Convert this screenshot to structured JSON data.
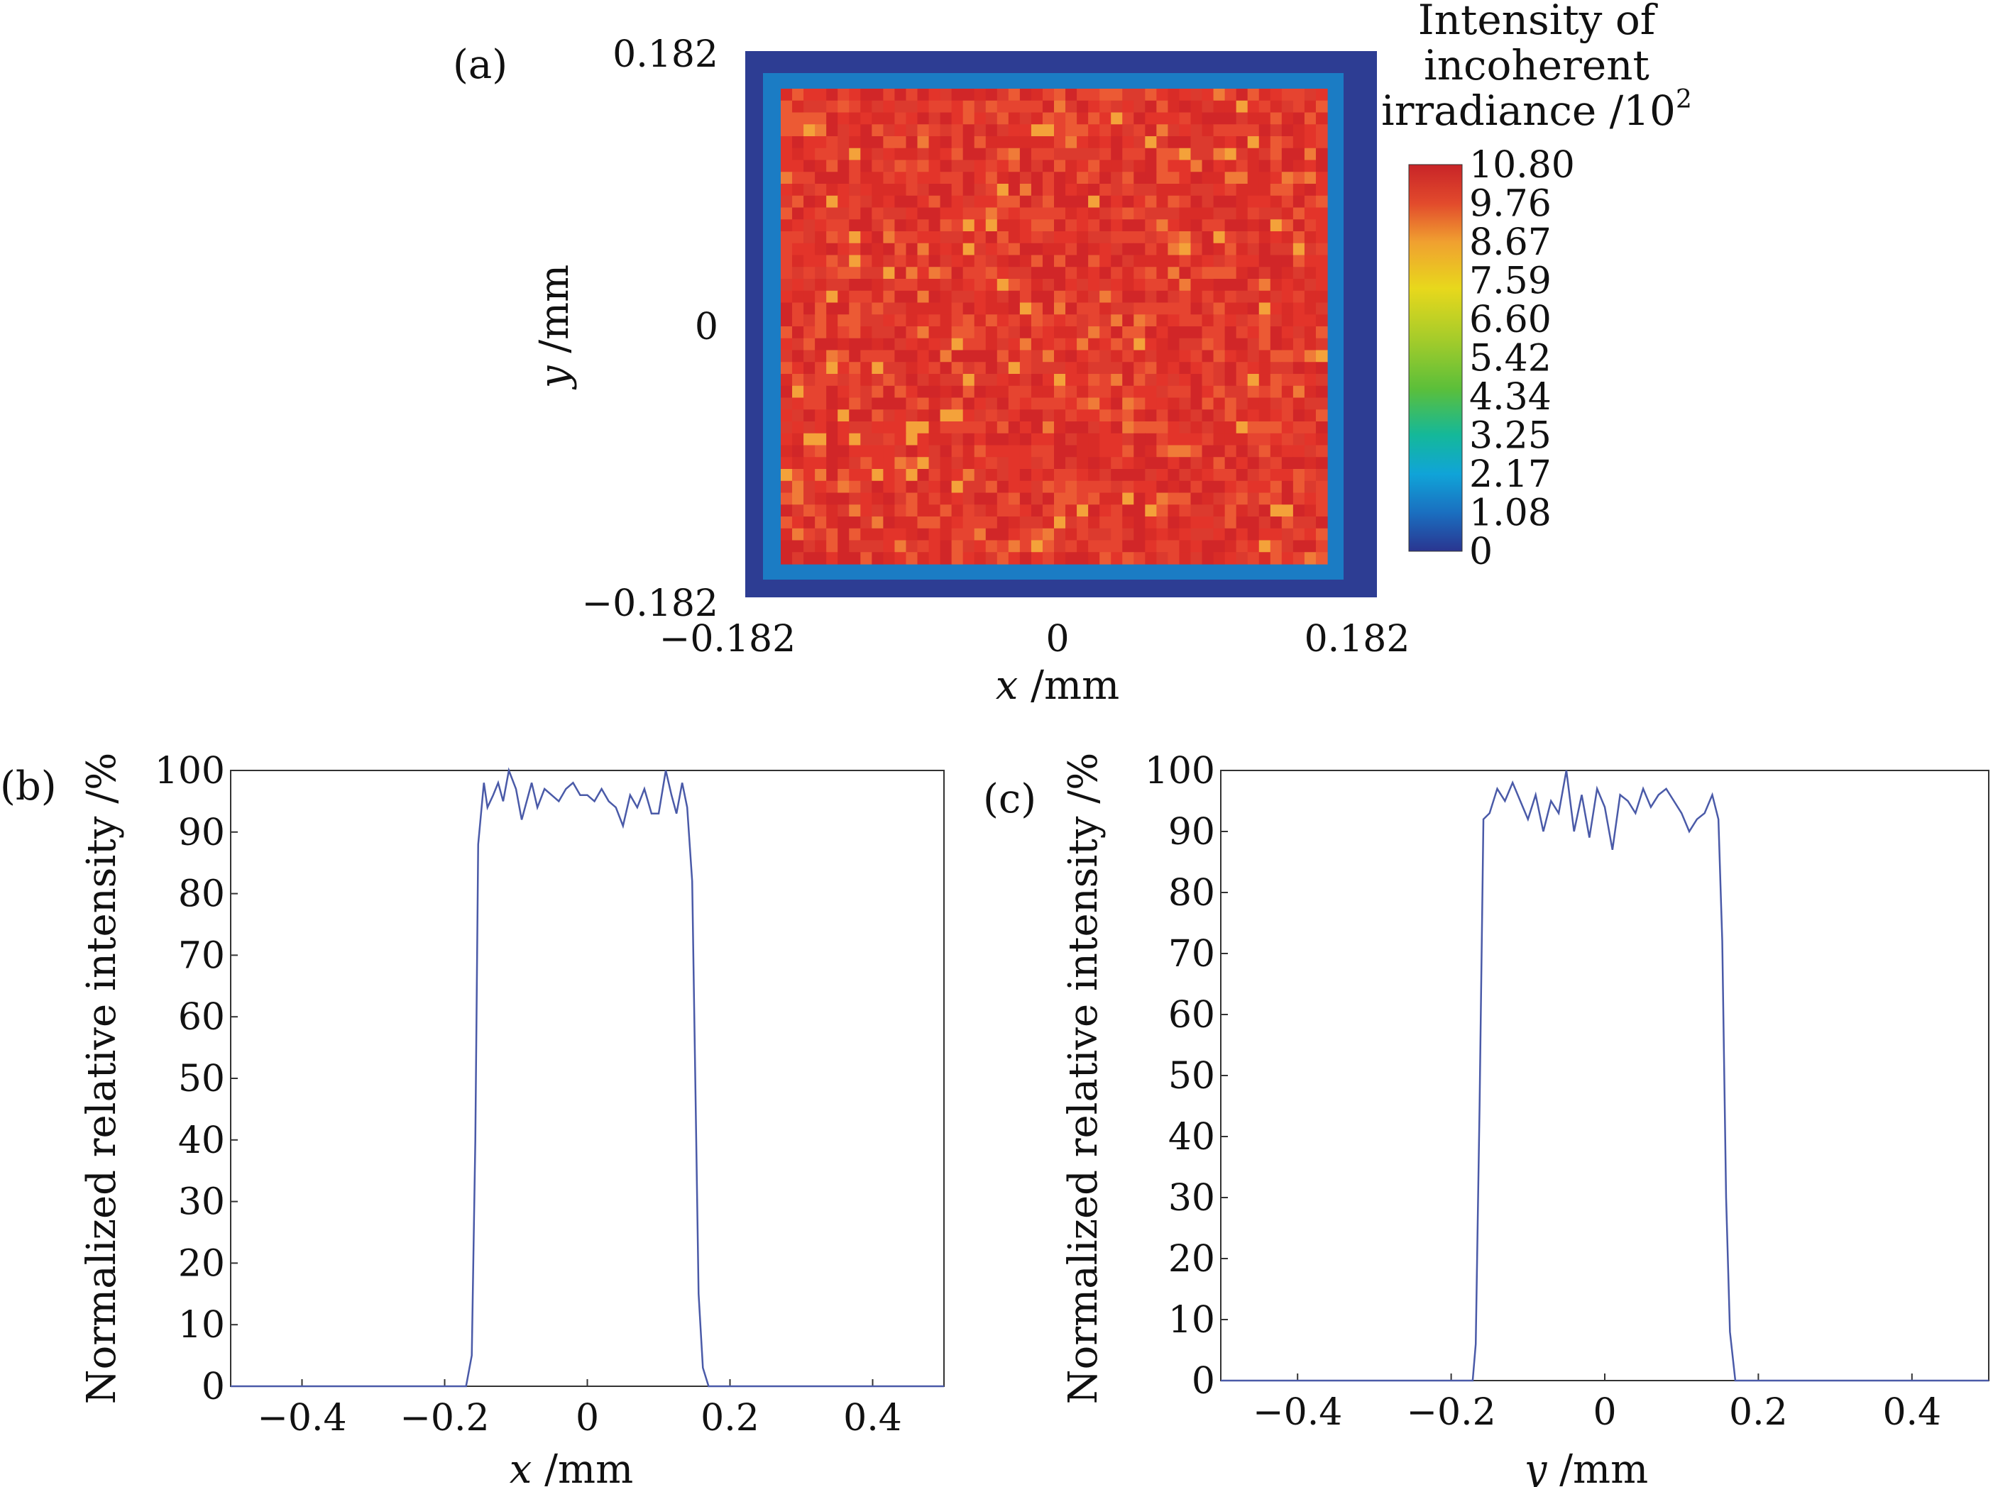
{
  "chart_data": [
    {
      "id": "a",
      "type": "heatmap",
      "panel_label": "(a)",
      "xlabel_var": "x",
      "xlabel_unit": " /mm",
      "ylabel_var": "y",
      "ylabel_unit": " /mm",
      "xlim": [
        -0.182,
        0.182
      ],
      "ylim": [
        -0.182,
        0.182
      ],
      "x_ticks": [
        "−0.182",
        "0",
        "0.182"
      ],
      "y_ticks": [
        "0.182",
        "0",
        "−0.182"
      ],
      "grid": [
        48,
        40
      ],
      "uniform_value_approx": 9.76,
      "colorbar": {
        "title_lines": [
          "Intensity of",
          "incoherent",
          "irradiance /10"
        ],
        "title_superscript": "2",
        "ticks": [
          "10.80",
          "9.76",
          "8.67",
          "7.59",
          "6.60",
          "5.42",
          "4.34",
          "3.25",
          "2.17",
          "1.08",
          "0"
        ],
        "range": [
          0,
          10.8
        ]
      }
    },
    {
      "id": "b",
      "type": "line",
      "panel_label": "(b)",
      "xlabel_var": "x",
      "xlabel_unit": " /mm",
      "ylabel": "Normalized relative intensity /%",
      "xlim": [
        -0.5,
        0.5
      ],
      "ylim": [
        0,
        100
      ],
      "x_ticks": [
        -0.4,
        -0.2,
        0,
        0.2,
        0.4
      ],
      "x_tick_labels": [
        "−0.4",
        "−0.2",
        "0",
        "0.2",
        "0.4"
      ],
      "y_ticks": [
        0,
        10,
        20,
        30,
        40,
        50,
        60,
        70,
        80,
        90,
        100
      ],
      "y_tick_labels": [
        "0",
        "10",
        "20",
        "30",
        "40",
        "50",
        "60",
        "70",
        "80",
        "90",
        "100"
      ],
      "line_color": "#4a5aa8",
      "x": [
        -0.5,
        -0.17,
        -0.162,
        -0.157,
        -0.153,
        -0.149,
        -0.145,
        -0.14,
        -0.132,
        -0.125,
        -0.118,
        -0.11,
        -0.1,
        -0.092,
        -0.085,
        -0.078,
        -0.07,
        -0.06,
        -0.05,
        -0.04,
        -0.03,
        -0.02,
        -0.01,
        0,
        0.01,
        0.02,
        0.03,
        0.04,
        0.05,
        0.06,
        0.07,
        0.08,
        0.09,
        0.1,
        0.11,
        0.118,
        0.125,
        0.133,
        0.14,
        0.147,
        0.152,
        0.156,
        0.162,
        0.17,
        0.5
      ],
      "y": [
        0,
        0,
        5,
        40,
        88,
        93,
        98,
        94,
        96,
        98,
        95,
        100,
        97,
        92,
        95,
        98,
        94,
        97,
        96,
        95,
        97,
        98,
        96,
        96,
        95,
        97,
        95,
        94,
        91,
        96,
        94,
        97,
        93,
        93,
        100,
        96,
        93,
        98,
        94,
        82,
        45,
        15,
        3,
        0,
        0
      ]
    },
    {
      "id": "c",
      "type": "line",
      "panel_label": "(c)",
      "xlabel_var": "y",
      "xlabel_unit": " /mm",
      "ylabel": "Normalized relative intensity /%",
      "xlim": [
        -0.5,
        0.5
      ],
      "ylim": [
        0,
        100
      ],
      "x_ticks": [
        -0.4,
        -0.2,
        0,
        0.2,
        0.4
      ],
      "x_tick_labels": [
        "−0.4",
        "−0.2",
        "0",
        "0.2",
        "0.4"
      ],
      "y_ticks": [
        0,
        10,
        20,
        30,
        40,
        50,
        60,
        70,
        80,
        90,
        100
      ],
      "y_tick_labels": [
        "0",
        "10",
        "20",
        "30",
        "40",
        "50",
        "60",
        "70",
        "80",
        "90",
        "100"
      ],
      "line_color": "#4a5aa8",
      "x": [
        -0.5,
        -0.172,
        -0.168,
        -0.163,
        -0.158,
        -0.15,
        -0.14,
        -0.13,
        -0.12,
        -0.11,
        -0.1,
        -0.09,
        -0.08,
        -0.07,
        -0.06,
        -0.05,
        -0.04,
        -0.03,
        -0.02,
        -0.01,
        0,
        0.01,
        0.02,
        0.03,
        0.04,
        0.05,
        0.06,
        0.07,
        0.08,
        0.09,
        0.1,
        0.11,
        0.12,
        0.13,
        0.14,
        0.148,
        0.153,
        0.158,
        0.163,
        0.17,
        0.5
      ],
      "y": [
        0,
        0,
        6,
        45,
        92,
        93,
        97,
        95,
        98,
        95,
        92,
        96,
        90,
        95,
        93,
        100,
        90,
        96,
        89,
        97,
        94,
        87,
        96,
        95,
        93,
        97,
        94,
        96,
        97,
        95,
        93,
        90,
        92,
        93,
        96,
        92,
        72,
        30,
        8,
        0,
        0
      ]
    }
  ]
}
